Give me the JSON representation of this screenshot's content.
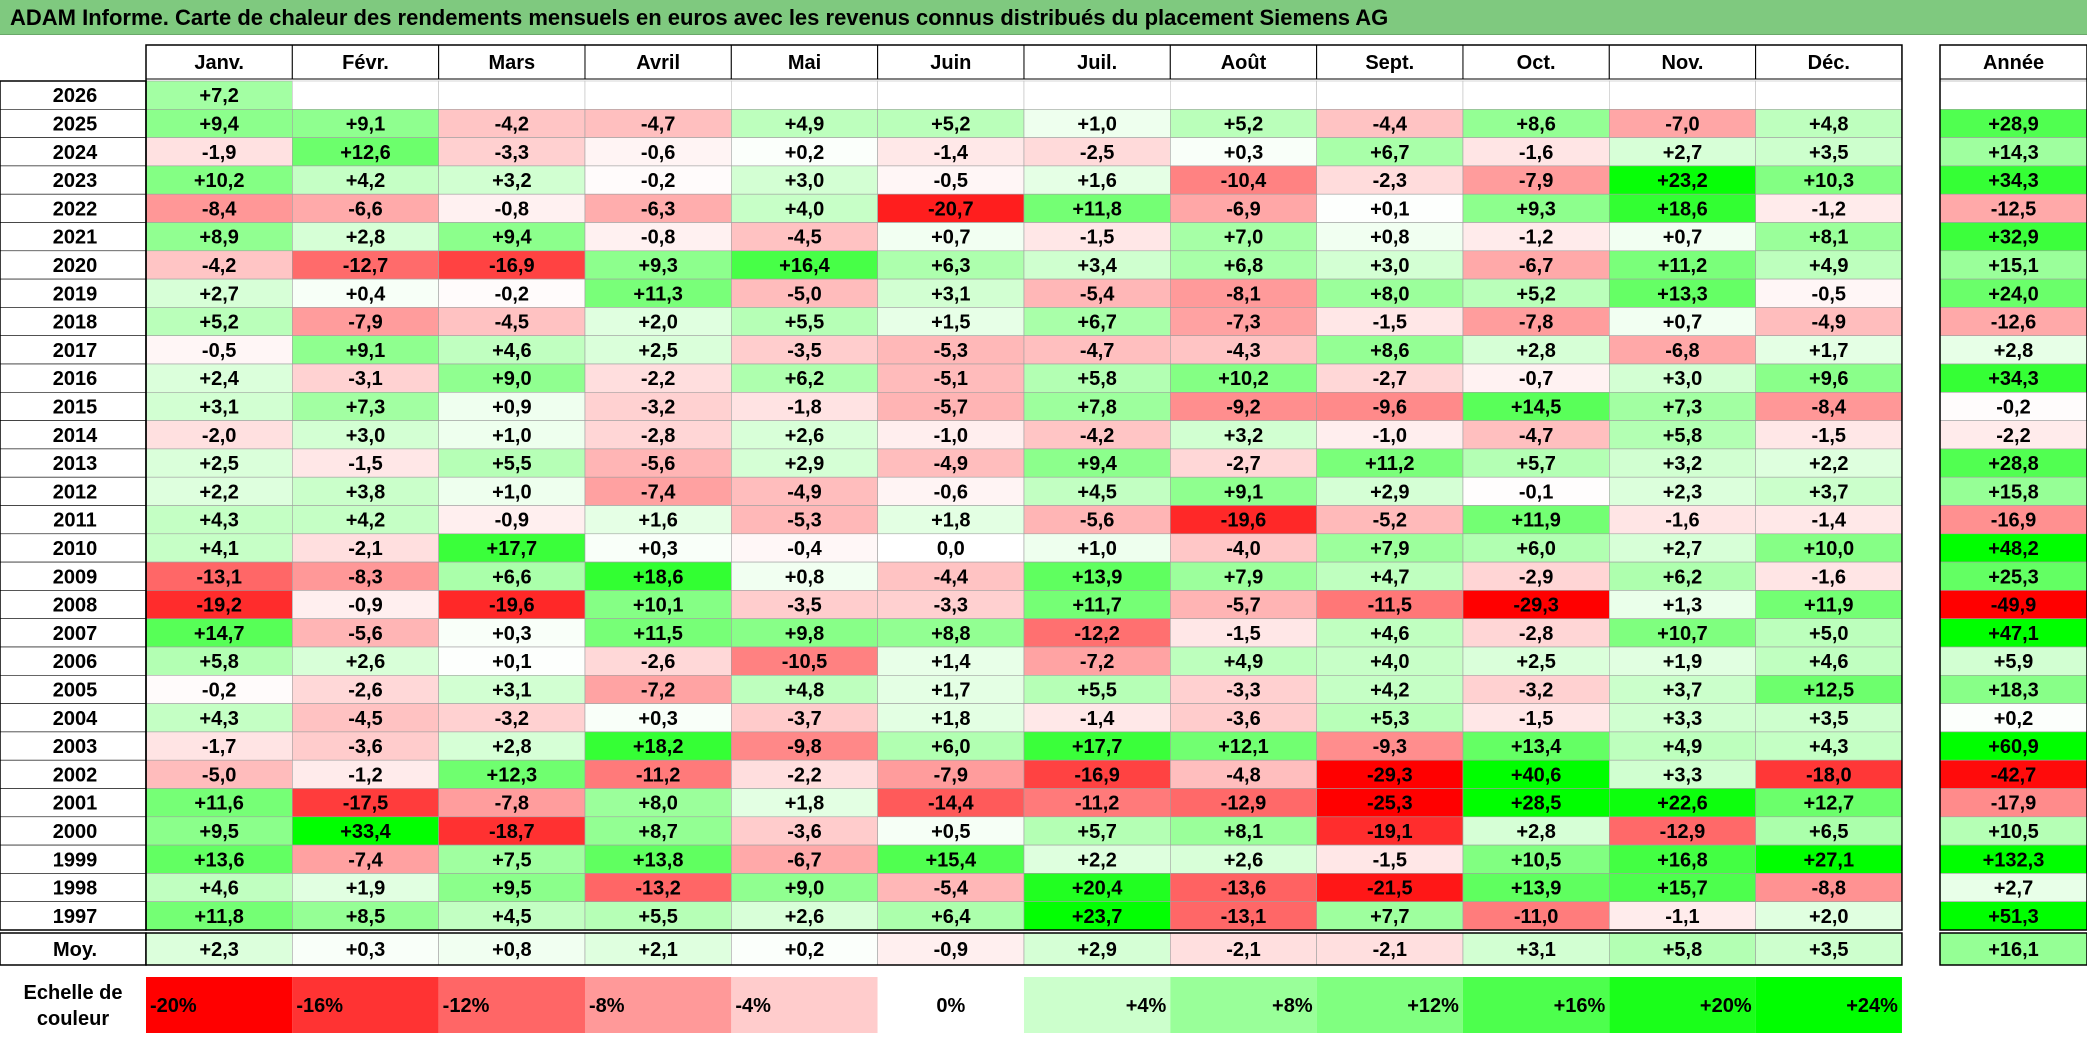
{
  "title": "ADAM Informe. Carte de chaleur des rendements mensuels en euros avec les revenus connus distribués du placement Siemens AG",
  "chart_data": {
    "type": "heatmap",
    "title": "ADAM Informe. Carte de chaleur des rendements mensuels en euros avec les revenus connus distribués du placement Siemens AG",
    "columns": [
      "Janv.",
      "Févr.",
      "Mars",
      "Avril",
      "Mai",
      "Juin",
      "Juil.",
      "Août",
      "Sept.",
      "Oct.",
      "Nov.",
      "Déc."
    ],
    "year_header": "Année",
    "rows": [
      {
        "year": "2026",
        "values": [
          "+7,2",
          null,
          null,
          null,
          null,
          null,
          null,
          null,
          null,
          null,
          null,
          null
        ],
        "annual": null
      },
      {
        "year": "2025",
        "values": [
          "+9,4",
          "+9,1",
          "-4,2",
          "-4,7",
          "+4,9",
          "+5,2",
          "+1,0",
          "+5,2",
          "-4,4",
          "+8,6",
          "-7,0",
          "+4,8"
        ],
        "annual": "+28,9"
      },
      {
        "year": "2024",
        "values": [
          "-1,9",
          "+12,6",
          "-3,3",
          "-0,6",
          "+0,2",
          "-1,4",
          "-2,5",
          "+0,3",
          "+6,7",
          "-1,6",
          "+2,7",
          "+3,5"
        ],
        "annual": "+14,3"
      },
      {
        "year": "2023",
        "values": [
          "+10,2",
          "+4,2",
          "+3,2",
          "-0,2",
          "+3,0",
          "-0,5",
          "+1,6",
          "-10,4",
          "-2,3",
          "-7,9",
          "+23,2",
          "+10,3"
        ],
        "annual": "+34,3"
      },
      {
        "year": "2022",
        "values": [
          "-8,4",
          "-6,6",
          "-0,8",
          "-6,3",
          "+4,0",
          "-20,7",
          "+11,8",
          "-6,9",
          "+0,1",
          "+9,3",
          "+18,6",
          "-1,2"
        ],
        "annual": "-12,5"
      },
      {
        "year": "2021",
        "values": [
          "+8,9",
          "+2,8",
          "+9,4",
          "-0,8",
          "-4,5",
          "+0,7",
          "-1,5",
          "+7,0",
          "+0,8",
          "-1,2",
          "+0,7",
          "+8,1"
        ],
        "annual": "+32,9"
      },
      {
        "year": "2020",
        "values": [
          "-4,2",
          "-12,7",
          "-16,9",
          "+9,3",
          "+16,4",
          "+6,3",
          "+3,4",
          "+6,8",
          "+3,0",
          "-6,7",
          "+11,2",
          "+4,9"
        ],
        "annual": "+15,1"
      },
      {
        "year": "2019",
        "values": [
          "+2,7",
          "+0,4",
          "-0,2",
          "+11,3",
          "-5,0",
          "+3,1",
          "-5,4",
          "-8,1",
          "+8,0",
          "+5,2",
          "+13,3",
          "-0,5"
        ],
        "annual": "+24,0"
      },
      {
        "year": "2018",
        "values": [
          "+5,2",
          "-7,9",
          "-4,5",
          "+2,0",
          "+5,5",
          "+1,5",
          "+6,7",
          "-7,3",
          "-1,5",
          "-7,8",
          "+0,7",
          "-4,9"
        ],
        "annual": "-12,6"
      },
      {
        "year": "2017",
        "values": [
          "-0,5",
          "+9,1",
          "+4,6",
          "+2,5",
          "-3,5",
          "-5,3",
          "-4,7",
          "-4,3",
          "+8,6",
          "+2,8",
          "-6,8",
          "+1,7"
        ],
        "annual": "+2,8"
      },
      {
        "year": "2016",
        "values": [
          "+2,4",
          "-3,1",
          "+9,0",
          "-2,2",
          "+6,2",
          "-5,1",
          "+5,8",
          "+10,2",
          "-2,7",
          "-0,7",
          "+3,0",
          "+9,6"
        ],
        "annual": "+34,3"
      },
      {
        "year": "2015",
        "values": [
          "+3,1",
          "+7,3",
          "+0,9",
          "-3,2",
          "-1,8",
          "-5,7",
          "+7,8",
          "-9,2",
          "-9,6",
          "+14,5",
          "+7,3",
          "-8,4"
        ],
        "annual": "-0,2"
      },
      {
        "year": "2014",
        "values": [
          "-2,0",
          "+3,0",
          "+1,0",
          "-2,8",
          "+2,6",
          "-1,0",
          "-4,2",
          "+3,2",
          "-1,0",
          "-4,7",
          "+5,8",
          "-1,5"
        ],
        "annual": "-2,2"
      },
      {
        "year": "2013",
        "values": [
          "+2,5",
          "-1,5",
          "+5,5",
          "-5,6",
          "+2,9",
          "-4,9",
          "+9,4",
          "-2,7",
          "+11,2",
          "+5,7",
          "+3,2",
          "+2,2"
        ],
        "annual": "+28,8"
      },
      {
        "year": "2012",
        "values": [
          "+2,2",
          "+3,8",
          "+1,0",
          "-7,4",
          "-4,9",
          "-0,6",
          "+4,5",
          "+9,1",
          "+2,9",
          "-0,1",
          "+2,3",
          "+3,7"
        ],
        "annual": "+15,8"
      },
      {
        "year": "2011",
        "values": [
          "+4,3",
          "+4,2",
          "-0,9",
          "+1,6",
          "-5,3",
          "+1,8",
          "-5,6",
          "-19,6",
          "-5,2",
          "+11,9",
          "-1,6",
          "-1,4"
        ],
        "annual": "-16,9"
      },
      {
        "year": "2010",
        "values": [
          "+4,1",
          "-2,1",
          "+17,7",
          "+0,3",
          "-0,4",
          "0,0",
          "+1,0",
          "-4,0",
          "+7,9",
          "+6,0",
          "+2,7",
          "+10,0"
        ],
        "annual": "+48,2"
      },
      {
        "year": "2009",
        "values": [
          "-13,1",
          "-8,3",
          "+6,6",
          "+18,6",
          "+0,8",
          "-4,4",
          "+13,9",
          "+7,9",
          "+4,7",
          "-2,9",
          "+6,2",
          "-1,6"
        ],
        "annual": "+25,3"
      },
      {
        "year": "2008",
        "values": [
          "-19,2",
          "-0,9",
          "-19,6",
          "+10,1",
          "-3,5",
          "-3,3",
          "+11,7",
          "-5,7",
          "-11,5",
          "-29,3",
          "+1,3",
          "+11,9"
        ],
        "annual": "-49,9"
      },
      {
        "year": "2007",
        "values": [
          "+14,7",
          "-5,6",
          "+0,3",
          "+11,5",
          "+9,8",
          "+8,8",
          "-12,2",
          "-1,5",
          "+4,6",
          "-2,8",
          "+10,7",
          "+5,0"
        ],
        "annual": "+47,1"
      },
      {
        "year": "2006",
        "values": [
          "+5,8",
          "+2,6",
          "+0,1",
          "-2,6",
          "-10,5",
          "+1,4",
          "-7,2",
          "+4,9",
          "+4,0",
          "+2,5",
          "+1,9",
          "+4,6"
        ],
        "annual": "+5,9"
      },
      {
        "year": "2005",
        "values": [
          "-0,2",
          "-2,6",
          "+3,1",
          "-7,2",
          "+4,8",
          "+1,7",
          "+5,5",
          "-3,3",
          "+4,2",
          "-3,2",
          "+3,7",
          "+12,5"
        ],
        "annual": "+18,3"
      },
      {
        "year": "2004",
        "values": [
          "+4,3",
          "-4,5",
          "-3,2",
          "+0,3",
          "-3,7",
          "+1,8",
          "-1,4",
          "-3,6",
          "+5,3",
          "-1,5",
          "+3,3",
          "+3,5"
        ],
        "annual": "+0,2"
      },
      {
        "year": "2003",
        "values": [
          "-1,7",
          "-3,6",
          "+2,8",
          "+18,2",
          "-9,8",
          "+6,0",
          "+17,7",
          "+12,1",
          "-9,3",
          "+13,4",
          "+4,9",
          "+4,3"
        ],
        "annual": "+60,9"
      },
      {
        "year": "2002",
        "values": [
          "-5,0",
          "-1,2",
          "+12,3",
          "-11,2",
          "-2,2",
          "-7,9",
          "-16,9",
          "-4,8",
          "-29,3",
          "+40,6",
          "+3,3",
          "-18,0"
        ],
        "annual": "-42,7"
      },
      {
        "year": "2001",
        "values": [
          "+11,6",
          "-17,5",
          "-7,8",
          "+8,0",
          "+1,8",
          "-14,4",
          "-11,2",
          "-12,9",
          "-25,3",
          "+28,5",
          "+22,6",
          "+12,7"
        ],
        "annual": "-17,9"
      },
      {
        "year": "2000",
        "values": [
          "+9,5",
          "+33,4",
          "-18,7",
          "+8,7",
          "-3,6",
          "+0,5",
          "+5,7",
          "+8,1",
          "-19,1",
          "+2,8",
          "-12,9",
          "+6,5"
        ],
        "annual": "+10,5"
      },
      {
        "year": "1999",
        "values": [
          "+13,6",
          "-7,4",
          "+7,5",
          "+13,8",
          "-6,7",
          "+15,4",
          "+2,2",
          "+2,6",
          "-1,5",
          "+10,5",
          "+16,8",
          "+27,1"
        ],
        "annual": "+132,3"
      },
      {
        "year": "1998",
        "values": [
          "+4,6",
          "+1,9",
          "+9,5",
          "-13,2",
          "+9,0",
          "-5,4",
          "+20,4",
          "-13,6",
          "-21,5",
          "+13,9",
          "+15,7",
          "-8,8"
        ],
        "annual": "+2,7"
      },
      {
        "year": "1997",
        "values": [
          "+11,8",
          "+8,5",
          "+4,5",
          "+5,5",
          "+2,6",
          "+6,4",
          "+23,7",
          "-13,1",
          "+7,7",
          "-11,0",
          "-1,1",
          "+2,0"
        ],
        "annual": "+51,3"
      }
    ],
    "average": {
      "label": "Moy.",
      "values": [
        "+2,3",
        "+0,3",
        "+0,8",
        "+2,1",
        "+0,2",
        "-0,9",
        "+2,9",
        "-2,1",
        "-2,1",
        "+3,1",
        "+5,8",
        "+3,5"
      ],
      "annual": "+16,1"
    },
    "scale": {
      "label_line1": "Echelle de",
      "label_line2": "couleur",
      "steps": [
        {
          "label": "-20%",
          "color": "#ff0000"
        },
        {
          "label": "-16%",
          "color": "#ff3333"
        },
        {
          "label": "-12%",
          "color": "#ff6666"
        },
        {
          "label": "-8%",
          "color": "#ff9999"
        },
        {
          "label": "-4%",
          "color": "#ffcccc"
        },
        {
          "label": "0%",
          "color": "#ffffff"
        },
        {
          "label": "+4%",
          "color": "#ccffcc"
        },
        {
          "label": "+8%",
          "color": "#99ff99"
        },
        {
          "label": "+12%",
          "color": "#80ff80"
        },
        {
          "label": "+16%",
          "color": "#4dff4d"
        },
        {
          "label": "+20%",
          "color": "#1aff1a"
        },
        {
          "label": "+24%",
          "color": "#00ff00"
        }
      ]
    },
    "colors": {
      "negative": "#ff0000",
      "neutral": "#ffffff",
      "positive": "#00ff00",
      "title_bg": "#7fc97f"
    }
  }
}
